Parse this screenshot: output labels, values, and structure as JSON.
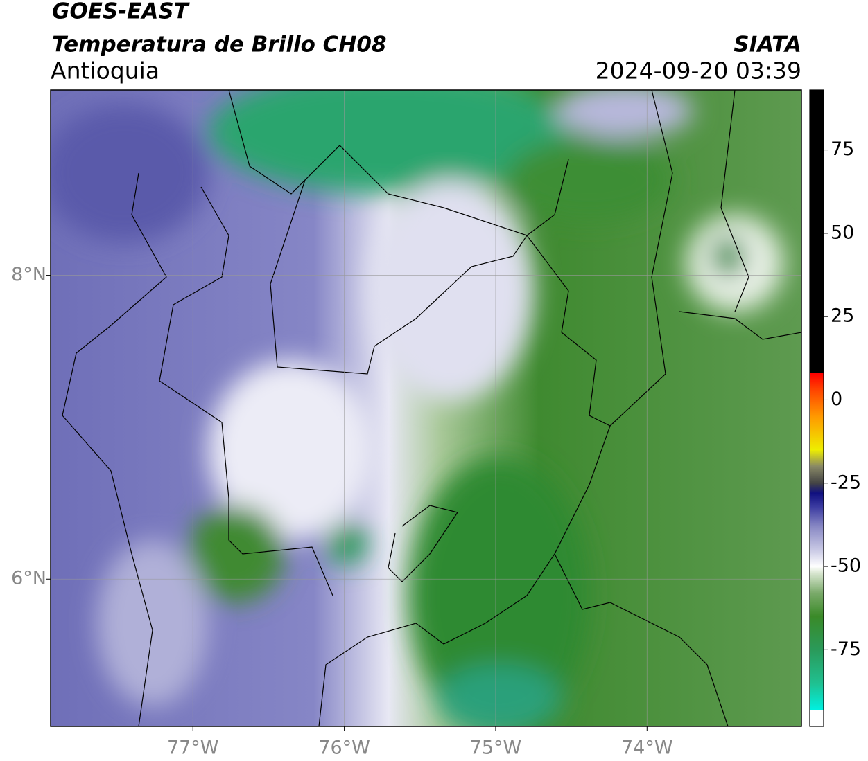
{
  "header": {
    "title": "GOES-EAST",
    "subtitle": "Temperatura de Brillo CH08",
    "region": "Antioquia",
    "agency": "SIATA",
    "datetime": "2024-09-20 03:39"
  },
  "map": {
    "lonlim": [
      -77.94,
      -72.98
    ],
    "latlim": [
      5.03,
      9.22
    ],
    "xticks": [
      {
        "value": -77,
        "label": "77°W"
      },
      {
        "value": -76,
        "label": "76°W"
      },
      {
        "value": -75,
        "label": "75°W"
      },
      {
        "value": -74,
        "label": "74°W"
      }
    ],
    "yticks": [
      {
        "value": 6,
        "label": "6°N"
      },
      {
        "value": 8,
        "label": "8°N"
      }
    ],
    "grid": true
  },
  "colorbar": {
    "lim": [
      -98,
      93
    ],
    "ticks": [
      -75,
      -50,
      -25,
      0,
      25,
      50,
      75
    ],
    "stops": [
      [
        -98,
        "#ffffff"
      ],
      [
        -93,
        "#ffffff"
      ],
      [
        -93,
        "#00f0e0"
      ],
      [
        -85,
        "#20c090"
      ],
      [
        -75,
        "#2a9a5a"
      ],
      [
        -65,
        "#3a8a28"
      ],
      [
        -58,
        "#7aaa6a"
      ],
      [
        -52,
        "#d8e6d0"
      ],
      [
        -50,
        "#ffffff"
      ],
      [
        -45,
        "#c8c8e4"
      ],
      [
        -38,
        "#8888c4"
      ],
      [
        -32,
        "#3a3aa0"
      ],
      [
        -28,
        "#101080"
      ],
      [
        -25,
        "#444444"
      ],
      [
        -20,
        "#888866"
      ],
      [
        -15,
        "#eeee00"
      ],
      [
        -5,
        "#ff9900"
      ],
      [
        3,
        "#ff4400"
      ],
      [
        8,
        "#ff0000"
      ],
      [
        8,
        "#000000"
      ],
      [
        93,
        "#000000"
      ]
    ]
  }
}
